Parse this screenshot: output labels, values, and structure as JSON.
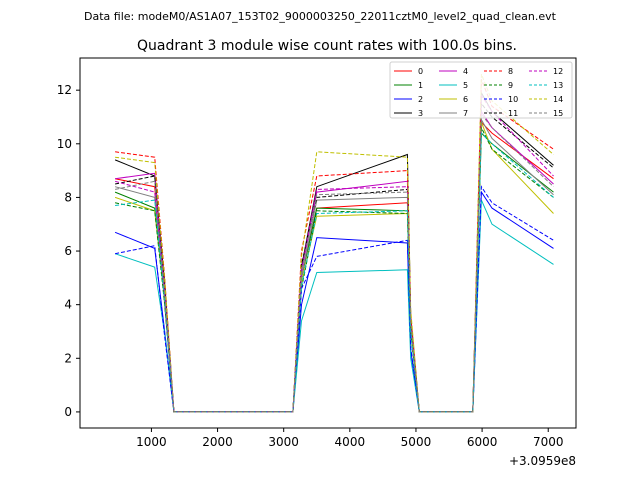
{
  "chart_data": {
    "type": "line",
    "suptitle": "Data file: modeM0/AS1A07_153T02_9000003250_22011cztM0_level2_quad_clean.evt",
    "title": "Quadrant 3 module wise count rates with 100.0s bins.",
    "xlabel": "",
    "ylabel": "",
    "offset_label": "+3.0959e8",
    "xlim": [
      -80,
      7420
    ],
    "ylim": [
      -0.6,
      13.2
    ],
    "xticks": [
      1000,
      2000,
      3000,
      4000,
      5000,
      6000,
      7000
    ],
    "xtick_labels": [
      "1000",
      "2000",
      "3000",
      "4000",
      "5000",
      "6000",
      "7000"
    ],
    "yticks": [
      0,
      2,
      4,
      6,
      8,
      10,
      12
    ],
    "ytick_labels": [
      "0",
      "2",
      "4",
      "6",
      "8",
      "10",
      "12"
    ],
    "x": [
      450,
      1050,
      1200,
      1340,
      3140,
      3270,
      3500,
      4870,
      4920,
      5050,
      5860,
      5990,
      6150,
      7080
    ],
    "series": [
      {
        "name": "0",
        "color": "#ff0000",
        "dash": "solid",
        "values": [
          8.7,
          8.4,
          4.0,
          0,
          0,
          5.0,
          7.6,
          7.8,
          3.0,
          0,
          0,
          10.8,
          10.4,
          8.7
        ]
      },
      {
        "name": "1",
        "color": "#008000",
        "dash": "solid",
        "values": [
          8.2,
          7.6,
          4.2,
          0,
          0,
          5.0,
          7.6,
          7.5,
          3.1,
          0,
          0,
          10.4,
          10.0,
          8.2
        ]
      },
      {
        "name": "2",
        "color": "#0000ff",
        "dash": "solid",
        "values": [
          6.7,
          6.1,
          3.0,
          0,
          0,
          4.0,
          6.5,
          6.3,
          2.3,
          0,
          0,
          8.2,
          7.6,
          6.1
        ]
      },
      {
        "name": "3",
        "color": "#000000",
        "dash": "solid",
        "values": [
          9.4,
          8.8,
          4.8,
          0,
          0,
          5.4,
          8.4,
          9.6,
          3.6,
          0,
          0,
          11.9,
          11.2,
          9.2
        ]
      },
      {
        "name": "4",
        "color": "#bf00bf",
        "dash": "solid",
        "values": [
          8.7,
          8.9,
          4.4,
          0,
          0,
          5.2,
          8.2,
          8.6,
          3.4,
          0,
          0,
          11.2,
          10.6,
          8.5
        ]
      },
      {
        "name": "5",
        "color": "#00bfbf",
        "dash": "solid",
        "values": [
          5.9,
          5.4,
          2.9,
          0,
          0,
          3.4,
          5.2,
          5.3,
          2.0,
          0,
          0,
          7.9,
          7.0,
          5.5
        ]
      },
      {
        "name": "6",
        "color": "#bfbf00",
        "dash": "solid",
        "values": [
          8.0,
          7.5,
          4.2,
          0,
          0,
          4.8,
          7.3,
          7.4,
          3.0,
          0,
          0,
          10.8,
          9.8,
          7.4
        ]
      },
      {
        "name": "7",
        "color": "#808080",
        "dash": "solid",
        "values": [
          8.4,
          8.0,
          4.3,
          0,
          0,
          5.0,
          7.9,
          8.0,
          3.2,
          0,
          0,
          10.9,
          10.2,
          8.1
        ]
      },
      {
        "name": "8",
        "color": "#ff0000",
        "dash": "dashed",
        "values": [
          9.7,
          9.5,
          5.0,
          0,
          0,
          6.0,
          8.8,
          9.0,
          3.6,
          0,
          0,
          12.4,
          11.4,
          9.8
        ]
      },
      {
        "name": "9",
        "color": "#008000",
        "dash": "dashed",
        "values": [
          7.8,
          7.5,
          4.0,
          0,
          0,
          4.6,
          7.5,
          7.4,
          3.0,
          0,
          0,
          10.6,
          9.8,
          8.0
        ]
      },
      {
        "name": "10",
        "color": "#0000ff",
        "dash": "dashed",
        "values": [
          5.9,
          6.2,
          2.8,
          0,
          0,
          4.6,
          5.8,
          6.4,
          2.4,
          0,
          0,
          8.4,
          7.8,
          6.4
        ]
      },
      {
        "name": "11",
        "color": "#000000",
        "dash": "dashed",
        "values": [
          8.5,
          8.8,
          4.5,
          0,
          0,
          5.5,
          8.0,
          8.3,
          3.4,
          0,
          0,
          11.5,
          11.0,
          9.1
        ]
      },
      {
        "name": "12",
        "color": "#bf00bf",
        "dash": "dashed",
        "values": [
          8.6,
          8.2,
          4.4,
          0,
          0,
          5.3,
          8.3,
          8.4,
          3.4,
          0,
          0,
          11.8,
          11.2,
          8.8
        ]
      },
      {
        "name": "13",
        "color": "#00bfbf",
        "dash": "dashed",
        "values": [
          7.7,
          7.9,
          4.1,
          0,
          0,
          4.7,
          7.4,
          7.5,
          3.0,
          0,
          0,
          10.4,
          10.0,
          8.0
        ]
      },
      {
        "name": "14",
        "color": "#bfbf00",
        "dash": "dashed",
        "values": [
          9.5,
          9.3,
          4.9,
          0,
          0,
          5.8,
          9.7,
          9.5,
          3.8,
          0,
          0,
          12.6,
          11.6,
          9.6
        ]
      },
      {
        "name": "15",
        "color": "#808080",
        "dash": "dashed",
        "values": [
          8.3,
          8.6,
          4.4,
          0,
          0,
          5.2,
          8.1,
          8.2,
          3.3,
          0,
          0,
          11.1,
          10.6,
          8.4
        ]
      }
    ],
    "legend": {
      "location": "upper right",
      "columns": 4
    }
  }
}
